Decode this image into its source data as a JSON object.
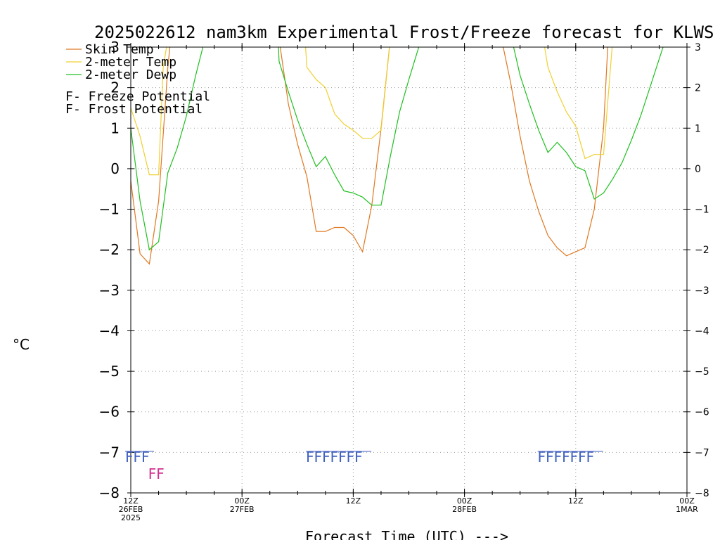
{
  "chart_data": {
    "type": "line",
    "title": "2025022612 nam3km Experimental Frost/Freeze forecast for KLWS",
    "ylabel": "°C",
    "xlabel": "Forecast Time (UTC) --->",
    "ylim": [
      -8,
      3
    ],
    "xlim": [
      0,
      60
    ],
    "y_ticks": [
      "-8",
      "-7",
      "-6",
      "-5",
      "-4",
      "-3",
      "-2",
      "-1",
      "0",
      "1",
      "2",
      "3"
    ],
    "x_ticks": [
      {
        "x": 0,
        "lines": [
          "12Z",
          "26FEB",
          "2025"
        ]
      },
      {
        "x": 12,
        "lines": [
          "00Z",
          "27FEB"
        ]
      },
      {
        "x": 24,
        "lines": [
          "12Z"
        ]
      },
      {
        "x": 36,
        "lines": [
          "00Z",
          "28FEB"
        ]
      },
      {
        "x": 48,
        "lines": [
          "12Z"
        ]
      },
      {
        "x": 60,
        "lines": [
          "00Z",
          "1MAR"
        ]
      }
    ],
    "grid": true,
    "legend_position": "top-left",
    "series": [
      {
        "name": "Skin Temp",
        "color": "#e07820",
        "points": [
          [
            0,
            -0.3
          ],
          [
            1,
            -2.1
          ],
          [
            2,
            -2.35
          ],
          [
            3,
            -0.8
          ],
          [
            4,
            2.5
          ],
          [
            4.3,
            3.2
          ],
          [
            16,
            3.2
          ],
          [
            17,
            1.6
          ],
          [
            18,
            0.6
          ],
          [
            19,
            -0.2
          ],
          [
            20,
            -1.55
          ],
          [
            21,
            -1.55
          ],
          [
            22,
            -1.45
          ],
          [
            23,
            -1.45
          ],
          [
            24,
            -1.65
          ],
          [
            25,
            -2.05
          ],
          [
            26,
            -0.9
          ],
          [
            27,
            1.0
          ],
          [
            28,
            3.2
          ],
          [
            40,
            3.2
          ],
          [
            41,
            2.1
          ],
          [
            42,
            0.8
          ],
          [
            43,
            -0.3
          ],
          [
            44,
            -1.05
          ],
          [
            45,
            -1.65
          ],
          [
            46,
            -1.95
          ],
          [
            47,
            -2.15
          ],
          [
            48,
            -2.05
          ],
          [
            49,
            -1.95
          ],
          [
            50,
            -1.0
          ],
          [
            51,
            1.0
          ],
          [
            51.5,
            3.2
          ]
        ]
      },
      {
        "name": "2-meter Temp",
        "color": "#f0d030",
        "points": [
          [
            0,
            1.5
          ],
          [
            1,
            0.8
          ],
          [
            2,
            -0.15
          ],
          [
            3,
            -0.15
          ],
          [
            3.5,
            2.5
          ],
          [
            4,
            3.2
          ],
          [
            18.8,
            3.2
          ],
          [
            19,
            2.5
          ],
          [
            20,
            2.2
          ],
          [
            21,
            2.0
          ],
          [
            22,
            1.35
          ],
          [
            23,
            1.1
          ],
          [
            24,
            0.95
          ],
          [
            25,
            0.75
          ],
          [
            26,
            0.75
          ],
          [
            27,
            0.95
          ],
          [
            28,
            3.2
          ],
          [
            44.5,
            3.2
          ],
          [
            45,
            2.5
          ],
          [
            46,
            1.9
          ],
          [
            47,
            1.4
          ],
          [
            48,
            1.05
          ],
          [
            49,
            0.25
          ],
          [
            50,
            0.35
          ],
          [
            51,
            0.35
          ],
          [
            52,
            3.2
          ]
        ]
      },
      {
        "name": "2-meter Dewp",
        "color": "#20c020",
        "points": [
          [
            0,
            1.0
          ],
          [
            1,
            -0.8
          ],
          [
            2,
            -2.0
          ],
          [
            3,
            -1.8
          ],
          [
            4,
            -0.1
          ],
          [
            5,
            0.5
          ],
          [
            6,
            1.3
          ],
          [
            7,
            2.3
          ],
          [
            8,
            3.2
          ],
          [
            15.9,
            3.2
          ],
          [
            16,
            2.65
          ],
          [
            17,
            1.9
          ],
          [
            18,
            1.2
          ],
          [
            19,
            0.6
          ],
          [
            20,
            0.05
          ],
          [
            21,
            0.3
          ],
          [
            22,
            -0.15
          ],
          [
            23,
            -0.55
          ],
          [
            24,
            -0.6
          ],
          [
            25,
            -0.7
          ],
          [
            26,
            -0.9
          ],
          [
            27,
            -0.9
          ],
          [
            28,
            0.3
          ],
          [
            29,
            1.4
          ],
          [
            30,
            2.2
          ],
          [
            31,
            2.95
          ],
          [
            31.3,
            3.2
          ],
          [
            41.1,
            3.2
          ],
          [
            42,
            2.3
          ],
          [
            43,
            1.6
          ],
          [
            44,
            0.95
          ],
          [
            45,
            0.4
          ],
          [
            46,
            0.65
          ],
          [
            47,
            0.4
          ],
          [
            48,
            0.05
          ],
          [
            49,
            -0.05
          ],
          [
            50,
            -0.75
          ],
          [
            51,
            -0.6
          ],
          [
            52,
            -0.25
          ],
          [
            53,
            0.15
          ],
          [
            54,
            0.7
          ],
          [
            55,
            1.3
          ],
          [
            56,
            2.0
          ],
          [
            57,
            2.7
          ],
          [
            57.7,
            3.2
          ]
        ]
      }
    ],
    "legend_entries": [
      {
        "label": "Skin Temp",
        "color": "#e07820"
      },
      {
        "label": "2-meter Temp",
        "color": "#f0d030"
      },
      {
        "label": "2-meter Dewp",
        "color": "#20c020"
      }
    ],
    "flag_legend": [
      {
        "letter": "F",
        "text": " - Freeze Potential",
        "color": "#d03090"
      },
      {
        "letter": "F",
        "text": " - Frost Potential",
        "color": "#4060c0"
      }
    ],
    "frost_flags": [
      {
        "x": 0,
        "count": 3
      },
      {
        "x": 19.5,
        "count": 7
      },
      {
        "x": 44.5,
        "count": 7
      }
    ],
    "freeze_flags": [
      {
        "x": 1.5,
        "count": 2
      }
    ]
  }
}
